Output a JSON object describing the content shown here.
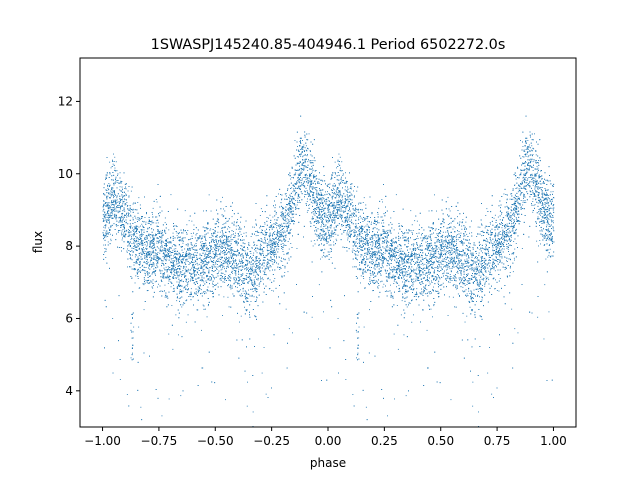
{
  "chart_data": {
    "type": "scatter",
    "title": "1SWASPJ145240.85-404946.1 Period 6502272.0s",
    "xlabel": "phase",
    "ylabel": "flux",
    "xlim": [
      -1.1,
      1.1
    ],
    "ylim": [
      3.0,
      13.2
    ],
    "xticks": [
      -1.0,
      -0.75,
      -0.5,
      -0.25,
      0.0,
      0.25,
      0.5,
      0.75,
      1.0
    ],
    "xtick_labels": [
      "−1.00",
      "−0.75",
      "−0.50",
      "−0.25",
      "0.00",
      "0.25",
      "0.50",
      "0.75",
      "1.00"
    ],
    "yticks": [
      4,
      6,
      8,
      10,
      12
    ],
    "ytick_labels": [
      "4",
      "6",
      "8",
      "10",
      "12"
    ],
    "grid": false,
    "legend": "none",
    "marker_color": "#1f77b4",
    "series": [
      {
        "period_fold": true,
        "profile_phase": [
          0.0,
          0.05,
          0.1,
          0.125,
          0.15,
          0.2,
          0.25,
          0.3,
          0.35,
          0.4,
          0.45,
          0.5,
          0.55,
          0.6,
          0.65,
          0.7,
          0.75,
          0.8,
          0.84,
          0.88,
          0.92,
          0.96,
          1.0
        ],
        "profile_flux": [
          8.6,
          9.4,
          8.8,
          8.3,
          8.1,
          7.9,
          7.9,
          7.6,
          7.5,
          7.4,
          7.6,
          7.7,
          7.8,
          7.6,
          7.3,
          7.7,
          8.0,
          8.3,
          9.2,
          10.3,
          9.8,
          8.9,
          8.6
        ],
        "scatter_sigma": 0.55,
        "point_count": 7000,
        "dip_phase": 0.13,
        "dip_flux_range": [
          4.8,
          6.2
        ]
      }
    ]
  }
}
